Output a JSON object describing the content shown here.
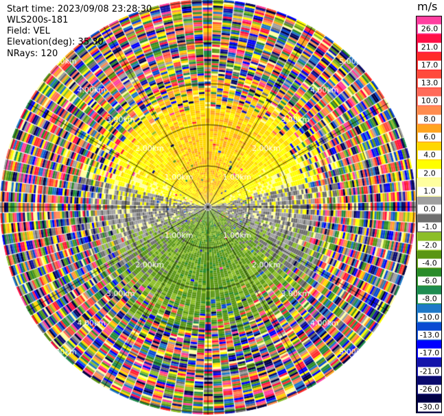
{
  "header": {
    "start_time": "Start time: 2023/09/08 23:28:30",
    "instrument": "WLS200s-181",
    "field": "Field: VEL",
    "elevation": "Elevation(deg): 35.30",
    "nrays": "NRays: 120"
  },
  "colorbar": {
    "unit": "m/s",
    "ticks": [
      "26.0",
      "21.0",
      "17.0",
      "13.0",
      "10.0",
      "8.0",
      "6.0",
      "4.0",
      "2.0",
      "1.0",
      "0.0",
      "-1.0",
      "-2.0",
      "-4.0",
      "-6.0",
      "-8.0",
      "-10.0",
      "-13.0",
      "-17.0",
      "-21.0",
      "-26.0",
      "-30.0"
    ],
    "colors": [
      "#ff3fa0",
      "#ff0f46",
      "#ff2a2a",
      "#ff4a3c",
      "#ff6b5a",
      "#ff8c50",
      "#ffa41e",
      "#ffd700",
      "#ffff00",
      "#ffffa0",
      "#a0a0a0",
      "#6e6e6e",
      "#8cbe28",
      "#5a9614",
      "#2a8c2a",
      "#1e8c50",
      "#1e78c8",
      "#0a4ad2",
      "#0000ff",
      "#1414aa",
      "#0a0a6e",
      "#000046"
    ]
  },
  "chart_data": {
    "type": "heatmap",
    "projection": "polar PPI",
    "field": "VEL",
    "units": "m/s",
    "n_rays": 120,
    "elevation_deg": 35.3,
    "range_rings_km": [
      1.0,
      2.0,
      3.0,
      4.0,
      5.0
    ],
    "range_ring_labels": [
      "1.00km",
      "2.00km",
      "3.00km",
      "4.00km",
      "5.00km"
    ],
    "spoke_azimuths_deg": [
      0,
      30,
      60,
      90,
      120,
      150,
      180,
      210,
      240,
      270,
      300,
      330
    ],
    "max_range_km": 5.0,
    "pattern": "Near range: positive velocities (orange/yellow, ~2 to 8 m/s) toward north, negative velocities (green, ~-4 to -6 m/s) toward south, near zero (gray) along east-west; beyond ~3.5 km mostly noise."
  }
}
